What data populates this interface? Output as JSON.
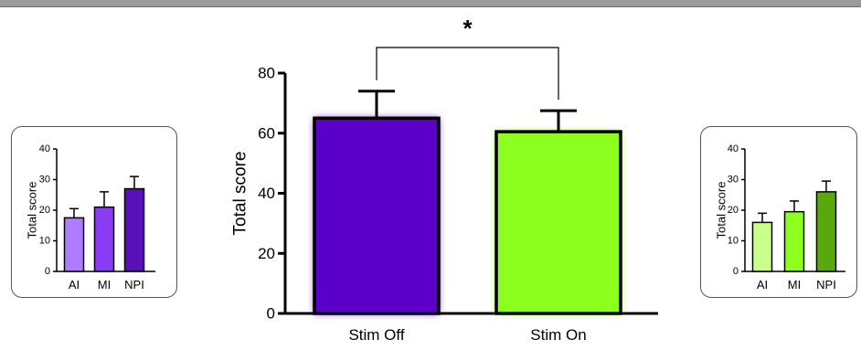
{
  "chart_data": [
    {
      "id": "main",
      "type": "bar",
      "categories": [
        "Stim Off",
        "Stim On"
      ],
      "values": [
        65,
        60.5
      ],
      "errors": [
        9,
        7
      ],
      "colors": [
        "#5b00c8",
        "#8cff1e"
      ],
      "ylabel": "Total score",
      "ylim": [
        0,
        80
      ],
      "yticks": [
        0,
        20,
        40,
        60,
        80
      ],
      "significance": "*"
    },
    {
      "id": "inset-left",
      "type": "bar",
      "categories": [
        "AI",
        "MI",
        "NPI"
      ],
      "values": [
        17.5,
        21,
        27
      ],
      "errors": [
        3,
        5,
        4
      ],
      "colors": [
        "#b07cff",
        "#8a3cf5",
        "#5a10b8"
      ],
      "ylabel": "Total score",
      "ylim": [
        0,
        40
      ],
      "yticks": [
        0,
        10,
        20,
        30,
        40
      ]
    },
    {
      "id": "inset-right",
      "type": "bar",
      "categories": [
        "AI",
        "MI",
        "NPI"
      ],
      "values": [
        16,
        19.5,
        26
      ],
      "errors": [
        3,
        3.5,
        3.5
      ],
      "colors": [
        "#caff8c",
        "#8cff1e",
        "#58a80e"
      ],
      "ylabel": "Total score",
      "ylim": [
        0,
        40
      ],
      "yticks": [
        0,
        10,
        20,
        30,
        40
      ]
    }
  ]
}
